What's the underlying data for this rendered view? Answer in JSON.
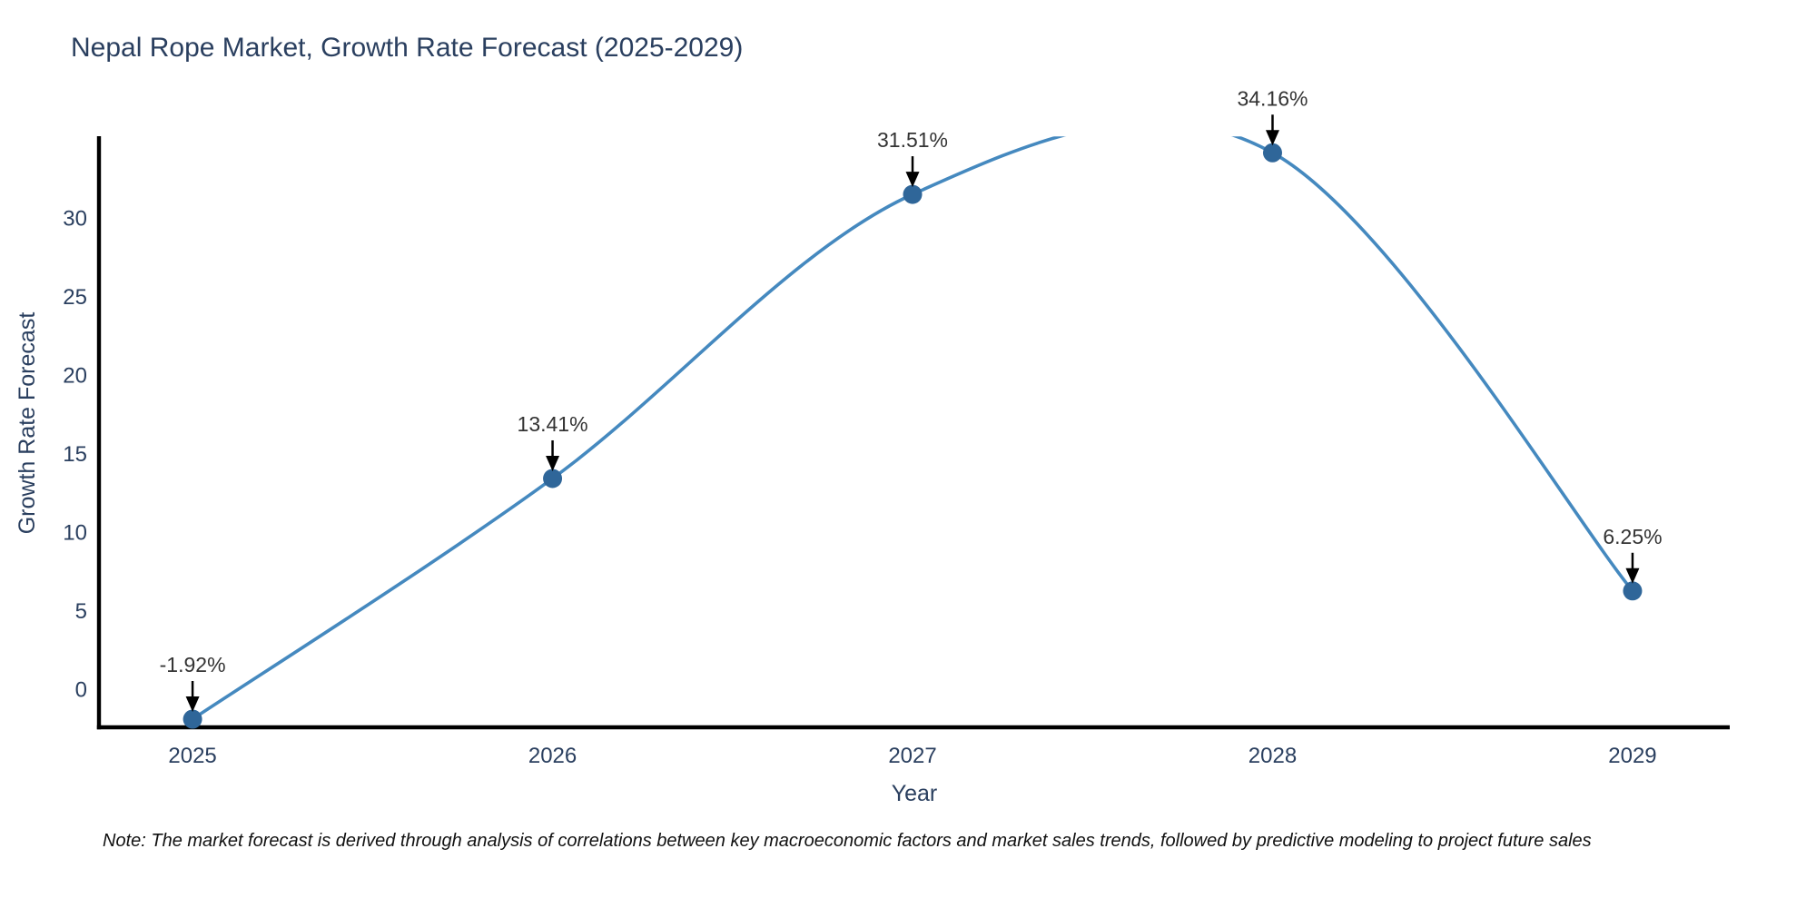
{
  "note": "Note: The market forecast is derived through analysis of correlations between key macroeconomic factors and market sales trends, followed by predictive modeling to project future sales",
  "chart_data": {
    "type": "line",
    "title": "Nepal Rope Market, Growth Rate Forecast (2025-2029)",
    "xlabel": "Year",
    "ylabel": "Growth Rate Forecast",
    "x": [
      2025,
      2026,
      2027,
      2028,
      2029
    ],
    "values": [
      -1.92,
      13.41,
      31.51,
      34.16,
      6.25
    ],
    "point_labels": [
      "-1.92%",
      "13.41%",
      "31.51%",
      "34.16%",
      "6.25%"
    ],
    "yticks": [
      0,
      5,
      10,
      15,
      20,
      25,
      30
    ],
    "xticks": [
      "2025",
      "2026",
      "2027",
      "2028",
      "2029"
    ],
    "xlim": [
      2024.74,
      2029.27
    ],
    "ylim": [
      -2.44,
      35.1
    ],
    "grid": false,
    "legend": false,
    "line_shape": "spline",
    "annotations_have_arrows": true,
    "colors": {
      "line": "#4589bf",
      "marker": "#2f6699",
      "axis": "#000000",
      "axis_text": "#2a3f5f",
      "annotation_text": "#333333",
      "arrow": "#000000",
      "background": "#ffffff"
    }
  }
}
